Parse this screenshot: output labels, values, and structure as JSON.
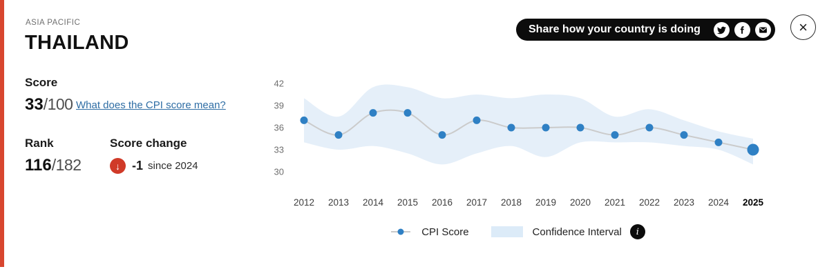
{
  "header": {
    "region": "ASIA PACIFIC",
    "country": "THAILAND"
  },
  "score_panel": {
    "score_label": "Score",
    "score_value": "33",
    "score_denominator": "/100",
    "cpi_link": "What does the CPI score mean?",
    "rank_label": "Rank",
    "rank_value": "116",
    "rank_denominator": "/182",
    "change_label": "Score change",
    "change_value": "-1",
    "change_since": "since 2024",
    "change_direction": "down"
  },
  "share": {
    "label": "Share how your country is doing",
    "icon_names": [
      "twitter-icon",
      "facebook-icon",
      "email-icon"
    ]
  },
  "icons": {
    "down_arrow": "↓",
    "close": "×",
    "info": "i"
  },
  "chart_data": {
    "type": "line",
    "title": "",
    "xlabel": "",
    "ylabel": "",
    "x": [
      2012,
      2013,
      2014,
      2015,
      2016,
      2017,
      2018,
      2019,
      2020,
      2021,
      2022,
      2023,
      2024,
      2025
    ],
    "highlight_x": 2025,
    "series": [
      {
        "name": "CPI Score",
        "values": [
          37,
          35,
          38,
          38,
          35,
          37,
          36,
          36,
          36,
          35,
          36,
          35,
          34,
          33
        ]
      }
    ],
    "confidence_interval": {
      "upper": [
        40,
        37.5,
        41.5,
        41.5,
        40,
        40.5,
        40,
        40.5,
        40,
        37.5,
        38.5,
        37,
        35.5,
        34.5
      ],
      "lower": [
        34,
        33,
        33.5,
        32.5,
        31,
        32.5,
        33.5,
        32,
        34,
        34,
        34,
        33.5,
        33,
        31
      ]
    },
    "ylim": [
      29,
      43
    ],
    "yticks": [
      30,
      33,
      36,
      39,
      42
    ],
    "grid": false,
    "legend": [
      {
        "label": "CPI Score",
        "type": "line-dot"
      },
      {
        "label": "Confidence Interval",
        "type": "band"
      }
    ],
    "colors": {
      "dot": "#2f80c4",
      "line": "#cbcbcb",
      "band": "#e5eff9"
    }
  }
}
